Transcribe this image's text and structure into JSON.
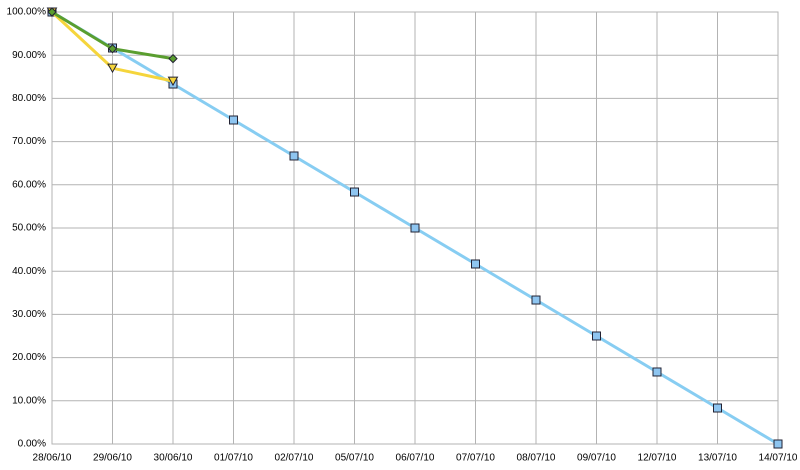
{
  "chart_data": {
    "type": "line",
    "categories": [
      "28/06/10",
      "29/06/10",
      "30/06/10",
      "01/07/10",
      "02/07/10",
      "05/07/10",
      "06/07/10",
      "07/07/10",
      "08/07/10",
      "09/07/10",
      "12/07/10",
      "13/07/10",
      "14/07/10"
    ],
    "series": [
      {
        "color": "#87cdf2",
        "marker": "square",
        "marker_color": "#8ec5f0",
        "values": [
          100,
          91.67,
          83.33,
          75,
          66.67,
          58.33,
          50,
          41.67,
          33.33,
          25,
          16.67,
          8.33,
          0
        ]
      },
      {
        "color": "#f5d53c",
        "marker": "triangle-down",
        "marker_color": "#f5d53c",
        "values": [
          100,
          87,
          84,
          null,
          null,
          null,
          null,
          null,
          null,
          null,
          null,
          null,
          null
        ]
      },
      {
        "color": "#5a9e2f",
        "marker": "diamond",
        "marker_color": "#5a9e2f",
        "values": [
          100,
          91.5,
          89.2,
          null,
          null,
          null,
          null,
          null,
          null,
          null,
          null,
          null,
          null
        ]
      }
    ],
    "ylim": [
      0,
      100
    ],
    "yticks": [
      {
        "value": 0,
        "label": "0.00%"
      },
      {
        "value": 10,
        "label": "10.00%"
      },
      {
        "value": 20,
        "label": "20.00%"
      },
      {
        "value": 30,
        "label": "30.00%"
      },
      {
        "value": 40,
        "label": "40.00%"
      },
      {
        "value": 50,
        "label": "50.00%"
      },
      {
        "value": 60,
        "label": "60.00%"
      },
      {
        "value": 70,
        "label": "70.00%"
      },
      {
        "value": 80,
        "label": "80.00%"
      },
      {
        "value": 90,
        "label": "90.00%"
      },
      {
        "value": 100,
        "label": "100.00%"
      }
    ],
    "grid": true
  }
}
